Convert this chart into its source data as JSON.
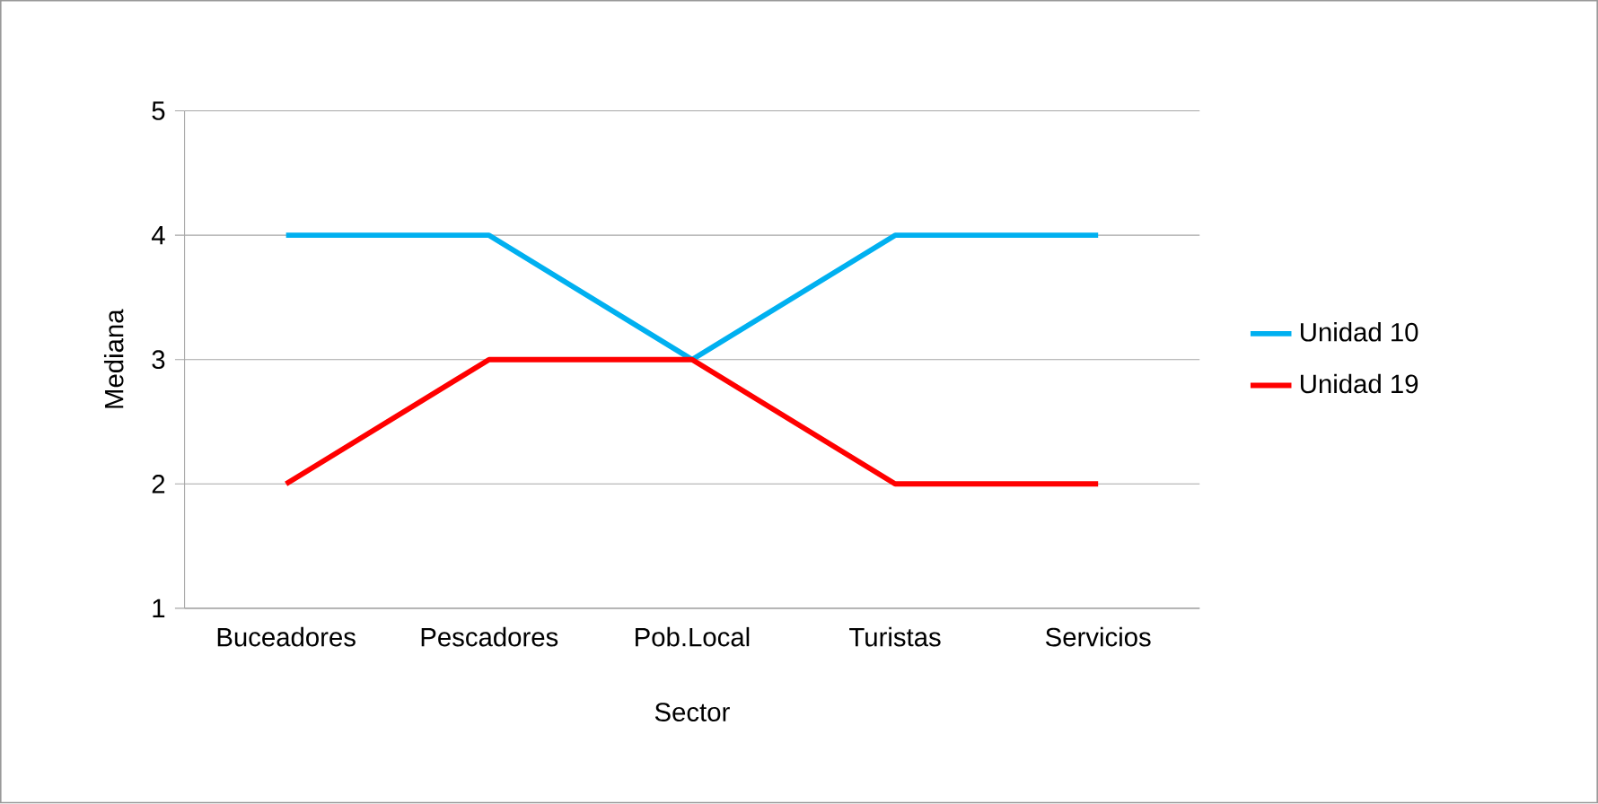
{
  "chart_data": {
    "type": "line",
    "xlabel": "Sector",
    "ylabel": "Mediana",
    "categories": [
      "Buceadores",
      "Pescadores",
      "Pob.Local",
      "Turistas",
      "Servicios"
    ],
    "series": [
      {
        "name": "Unidad 10",
        "color": "#00b0f0",
        "values": [
          4,
          4,
          3,
          4,
          4
        ]
      },
      {
        "name": "Unidad 19",
        "color": "#ff0000",
        "values": [
          2,
          3,
          3,
          2,
          2
        ]
      }
    ],
    "ylim": [
      1,
      5
    ],
    "yticks": [
      1,
      2,
      3,
      4,
      5
    ],
    "grid": "y",
    "legend": "right",
    "marker": "none",
    "line_style": "solid"
  }
}
